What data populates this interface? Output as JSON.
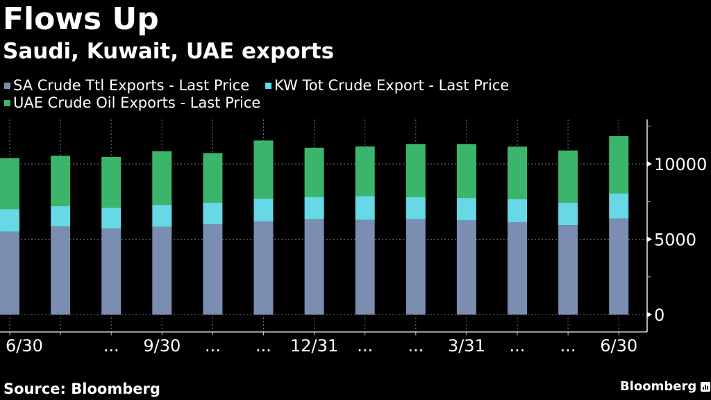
{
  "header": {
    "title": "Flows Up",
    "subtitle": "Saudi, Kuwait, UAE exports"
  },
  "legend": [
    {
      "label": "SA Crude Ttl Exports - Last Price",
      "color": "#7b8db0"
    },
    {
      "label": "KW Tot Crude Export - Last Price",
      "color": "#66d8e6"
    },
    {
      "label": "UAE Crude Oil Exports - Last Price",
      "color": "#3cb56c"
    }
  ],
  "footer": {
    "source": "Source: Bloomberg",
    "brand": "Bloomberg"
  },
  "chart_data": {
    "type": "bar",
    "stacked": true,
    "title": "Flows Up",
    "subtitle": "Saudi, Kuwait, UAE exports",
    "xlabel": "",
    "ylabel": "",
    "categories": [
      "6/30",
      "",
      "...",
      "9/30",
      "...",
      "...",
      "12/31",
      "...",
      "...",
      "3/31",
      "...",
      "...",
      "6/30"
    ],
    "series": [
      {
        "name": "SA Crude Ttl Exports - Last Price",
        "color": "#7b8db0",
        "values": [
          5500,
          5850,
          5700,
          5820,
          5980,
          6180,
          6330,
          6280,
          6330,
          6250,
          6130,
          5930,
          6370
        ]
      },
      {
        "name": "KW Tot Crude Export - Last Price",
        "color": "#66d8e6",
        "values": [
          1500,
          1340,
          1400,
          1460,
          1440,
          1530,
          1490,
          1580,
          1460,
          1490,
          1520,
          1490,
          1680
        ]
      },
      {
        "name": "UAE Crude Oil Exports - Last Price",
        "color": "#3cb56c",
        "values": [
          3380,
          3350,
          3360,
          3560,
          3300,
          3840,
          3250,
          3300,
          3530,
          3580,
          3500,
          3470,
          3790
        ]
      }
    ],
    "ylim": [
      0,
      12900
    ],
    "yticks": [
      0,
      5000,
      10000
    ],
    "yticks_minor": [
      2500,
      7500,
      12500
    ],
    "ytick_labels": [
      "0",
      "5000",
      "10000"
    ],
    "y_axis_side": "right",
    "grid": true,
    "legend_position": "top-left"
  }
}
